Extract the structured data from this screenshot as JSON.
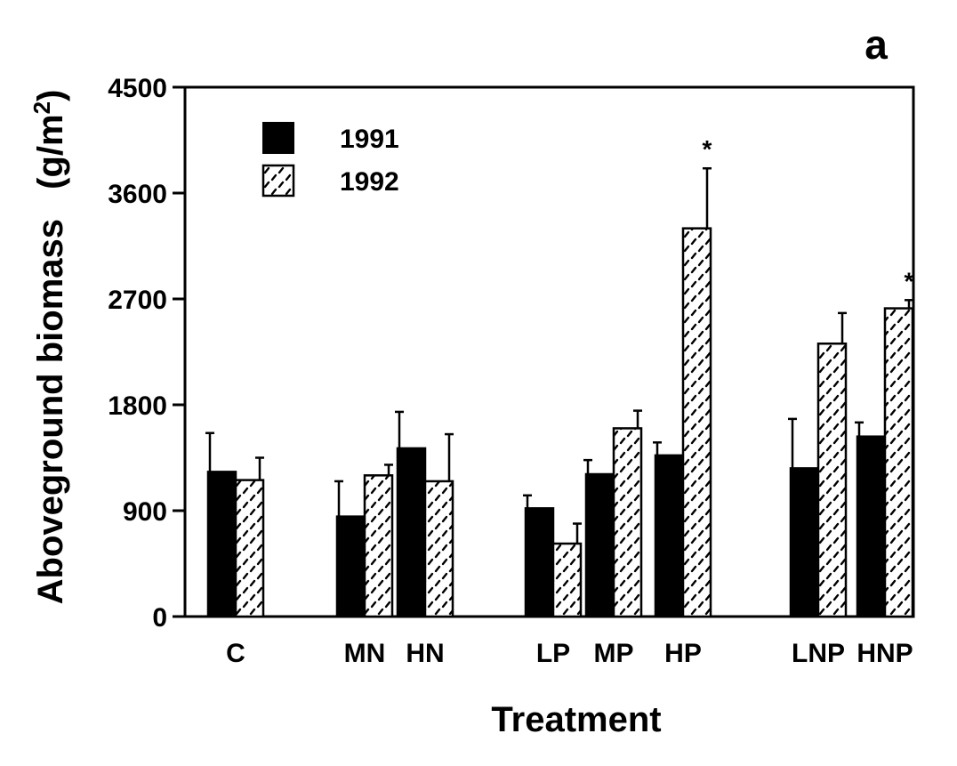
{
  "chart_data": {
    "type": "bar",
    "panel_label": "a",
    "ylabel_main": "Aboveground biomass",
    "ylabel_unit_open": "(g/m",
    "ylabel_unit_sup": "2",
    "ylabel_unit_close": ")",
    "xlabel": "Treatment",
    "ylim": [
      0,
      4500
    ],
    "yticks": [
      0,
      900,
      1800,
      2700,
      3600,
      4500
    ],
    "ytick_labels": [
      "0",
      "900",
      "1800",
      "2700",
      "3600",
      "4500"
    ],
    "categories": [
      "C",
      "MN",
      "HN",
      "LP",
      "MP",
      "HP",
      "LNP",
      "HNP"
    ],
    "groups": [
      [
        "C"
      ],
      [
        "MN",
        "HN"
      ],
      [
        "LP",
        "MP",
        "HP"
      ],
      [
        "LNP",
        "HNP"
      ]
    ],
    "series": [
      {
        "name": "1991",
        "fill": "solid",
        "values": [
          1230,
          850,
          1430,
          920,
          1210,
          1370,
          1260,
          1530
        ],
        "errors": [
          330,
          300,
          310,
          110,
          120,
          110,
          420,
          120
        ]
      },
      {
        "name": "1992",
        "fill": "hatched",
        "values": [
          1160,
          1200,
          1150,
          620,
          1600,
          3300,
          2320,
          2620
        ],
        "errors": [
          190,
          90,
          400,
          170,
          150,
          510,
          260,
          70
        ]
      }
    ],
    "annotations": [
      {
        "text": "*",
        "category": "HP",
        "series": "1992"
      },
      {
        "text": "*",
        "category": "HNP",
        "series": "1992"
      }
    ],
    "legend": {
      "placement": "top-left",
      "entries": [
        "1991",
        "1992"
      ]
    },
    "grid": false,
    "colors": {
      "ink": "#000000",
      "background": "#ffffff"
    }
  }
}
